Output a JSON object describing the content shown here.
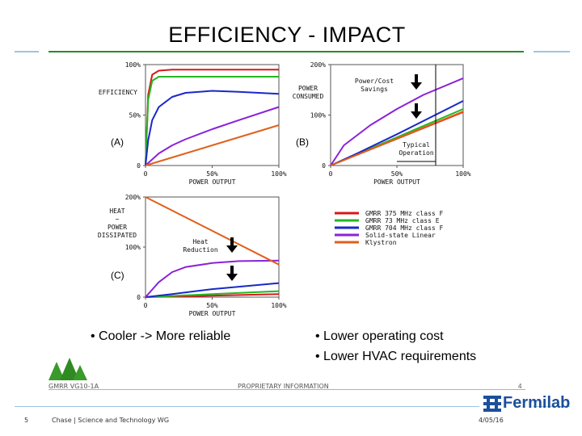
{
  "slide": {
    "title": "EFFICIENCY - IMPACT",
    "bullets_left": [
      "• Cooler -> More reliable"
    ],
    "bullets_right": [
      "• Lower operating cost",
      "• Lower HVAC requirements"
    ],
    "footer_tree_label": "GMRR VG10-1A",
    "footer_proprietary": "PROPRIETARY INFORMATION",
    "footer_page_inner": "4",
    "footer_page": "5",
    "footer_center": "Chase | Science and Technology WG",
    "footer_date": "4/05/16",
    "logo_text": "Fermilab",
    "colors": {
      "title_rule": "#2b8a2b",
      "side_rule": "#9cc4e4",
      "logo_blue": "#1c4f9c"
    }
  },
  "chart_data": [
    {
      "type": "line",
      "panel": "(A)",
      "ylabel": "EFFICIENCY",
      "xlabel": "POWER OUTPUT",
      "x_ticks": [
        "0",
        "50%",
        "100%"
      ],
      "y_ticks": [
        "0",
        "50%",
        "100%"
      ],
      "xlim": [
        0,
        100
      ],
      "ylim": [
        0,
        100
      ],
      "series": [
        {
          "name": "GMRR 375 MHz class F",
          "color": "#d81818",
          "x": [
            0,
            2,
            5,
            10,
            20,
            30,
            50,
            70,
            100
          ],
          "y": [
            0,
            70,
            90,
            94,
            95,
            95,
            95,
            95,
            95
          ]
        },
        {
          "name": "GMRR 73 MHz class E",
          "color": "#22b822",
          "x": [
            0,
            2,
            5,
            10,
            20,
            30,
            50,
            70,
            100
          ],
          "y": [
            0,
            65,
            84,
            88,
            88,
            88,
            88,
            88,
            88
          ]
        },
        {
          "name": "GMRR 704 MHz class F",
          "color": "#1a28c8",
          "x": [
            0,
            2,
            5,
            10,
            20,
            30,
            50,
            70,
            100
          ],
          "y": [
            0,
            25,
            45,
            58,
            68,
            72,
            74,
            73,
            71
          ]
        },
        {
          "name": "Solid-state Linear",
          "color": "#8a22d8",
          "x": [
            0,
            10,
            20,
            30,
            50,
            70,
            100
          ],
          "y": [
            0,
            12,
            20,
            26,
            36,
            45,
            58
          ]
        },
        {
          "name": "Klystron",
          "color": "#e0601a",
          "x": [
            0,
            100
          ],
          "y": [
            0,
            40
          ]
        }
      ]
    },
    {
      "type": "line",
      "panel": "(B)",
      "ylabel": "POWER CONSUMED",
      "xlabel": "POWER OUTPUT",
      "x_ticks": [
        "0",
        "50%",
        "100%"
      ],
      "y_ticks": [
        "0",
        "100%",
        "200%"
      ],
      "xlim": [
        0,
        100
      ],
      "ylim": [
        0,
        200
      ],
      "annotations": [
        "Power/Cost Savings",
        "Typical Operation"
      ],
      "series": [
        {
          "name": "GMRR 375 MHz class F",
          "color": "#d81818",
          "x": [
            0,
            100
          ],
          "y": [
            0,
            106
          ]
        },
        {
          "name": "GMRR 73 MHz class E",
          "color": "#22b822",
          "x": [
            0,
            100
          ],
          "y": [
            0,
            112
          ]
        },
        {
          "name": "GMRR 704 MHz class F",
          "color": "#1a28c8",
          "x": [
            0,
            20,
            50,
            100
          ],
          "y": [
            0,
            24,
            62,
            128
          ]
        },
        {
          "name": "Solid-state Linear",
          "color": "#8a22d8",
          "x": [
            0,
            10,
            30,
            50,
            70,
            100
          ],
          "y": [
            0,
            40,
            80,
            112,
            140,
            173
          ]
        },
        {
          "name": "Klystron",
          "color": "#e0601a",
          "x": [
            0,
            100
          ],
          "y": [
            0,
            107
          ]
        }
      ]
    },
    {
      "type": "line",
      "panel": "(C)",
      "ylabel": "HEAT ~ POWER DISSIPATED",
      "xlabel": "POWER OUTPUT",
      "x_ticks": [
        "0",
        "50%",
        "100%"
      ],
      "y_ticks": [
        "0",
        "100%",
        "200%"
      ],
      "xlim": [
        0,
        100
      ],
      "ylim": [
        0,
        200
      ],
      "annotations": [
        "Heat Reduction"
      ],
      "series": [
        {
          "name": "GMRR 375 MHz class F",
          "color": "#d81818",
          "x": [
            0,
            100
          ],
          "y": [
            0,
            6
          ]
        },
        {
          "name": "GMRR 73 MHz class E",
          "color": "#22b822",
          "x": [
            0,
            100
          ],
          "y": [
            0,
            12
          ]
        },
        {
          "name": "GMRR 704 MHz class F",
          "color": "#1a28c8",
          "x": [
            0,
            20,
            50,
            100
          ],
          "y": [
            0,
            6,
            16,
            28
          ]
        },
        {
          "name": "Solid-state Linear",
          "color": "#8a22d8",
          "x": [
            0,
            10,
            20,
            30,
            50,
            70,
            100
          ],
          "y": [
            0,
            30,
            50,
            60,
            68,
            72,
            73
          ]
        },
        {
          "name": "Klystron",
          "color": "#e0601a",
          "x": [
            0,
            100
          ],
          "y": [
            200,
            65
          ]
        }
      ]
    }
  ],
  "legend": {
    "items": [
      {
        "label": "GMRR 375 MHz class F",
        "color": "#d81818"
      },
      {
        "label": "GMRR  73 MHz class E",
        "color": "#22b822"
      },
      {
        "label": "GMRR 704 MHz class F",
        "color": "#1a28c8"
      },
      {
        "label": "Solid-state Linear",
        "color": "#8a22d8"
      },
      {
        "label": "Klystron",
        "color": "#e0601a"
      }
    ]
  }
}
